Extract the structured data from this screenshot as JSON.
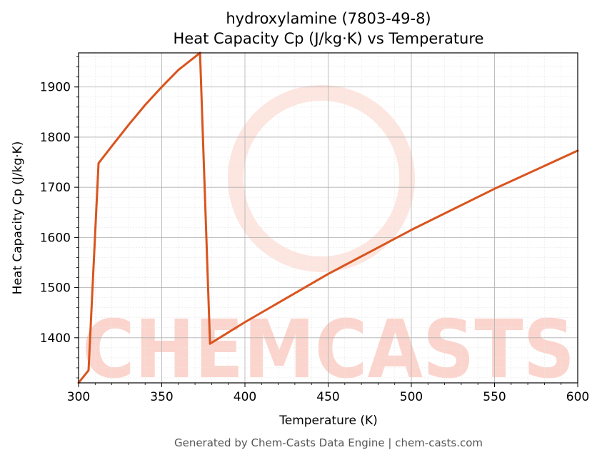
{
  "chart_data": {
    "type": "line",
    "title": "hydroxylamine (7803-49-8)",
    "subtitle": "Heat Capacity Cp (J/kg·K) vs Temperature",
    "xlabel": "Temperature (K)",
    "ylabel": "Heat Capacity Cp (J/kg·K)",
    "xlim": [
      300,
      600
    ],
    "ylim": [
      1310,
      1968
    ],
    "xticks": [
      300,
      350,
      400,
      450,
      500,
      550,
      600
    ],
    "yticks": [
      1400,
      1500,
      1600,
      1700,
      1800,
      1900
    ],
    "grid": true,
    "legend": "none",
    "line_color": "#d9541e",
    "series": [
      {
        "x": [
          300,
          306,
          312,
          320,
          330,
          340,
          350,
          360,
          370,
          373,
          379,
          400,
          450,
          500,
          550,
          600
        ],
        "y": [
          1310,
          1335,
          1748,
          1782,
          1824,
          1864,
          1900,
          1934,
          1960,
          1968,
          1388,
          1431,
          1527,
          1615,
          1697,
          1773
        ]
      }
    ]
  },
  "footer": "Generated by Chem-Casts Data Engine | chem-casts.com",
  "watermark": "CHEMCASTS",
  "watermark_color": "#fbd5cd"
}
